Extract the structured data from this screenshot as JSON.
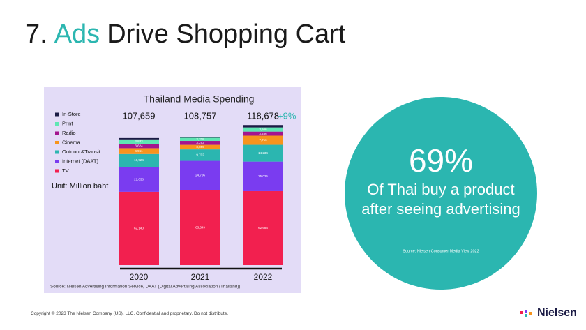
{
  "slide": {
    "title_number": "7.",
    "title_highlight": "Ads",
    "title_rest": "Drive Shopping Cart",
    "stat": "69%",
    "stat_text": "Of Thai buy a product after seeing advertising",
    "stat_source": "Source: Nielsen Consumer Media View 2022",
    "copyright": "Copyright © 2023 The Nielsen Company (US), LLC. Confidential and proprietary. Do not distribute.",
    "brand": "Nielsen"
  },
  "chart_data": {
    "type": "stacked-bar",
    "title": "Thailand Media Spending",
    "categories": [
      "2020",
      "2021",
      "2022"
    ],
    "series": [
      {
        "name": "TV",
        "color": "#f2204f",
        "values": [
          62140,
          63649,
          62684
        ],
        "value_labels": [
          "62,140",
          "63,649",
          "62,684"
        ]
      },
      {
        "name": "Internet (DAAT)",
        "color": "#7a3cf0",
        "values": [
          21038,
          24706,
          25025
        ],
        "value_labels": [
          "21,038",
          "24,706",
          "25,025"
        ]
      },
      {
        "name": "Outdoor&Transit",
        "color": "#2bb6b0",
        "values": [
          10924,
          9702,
          14234
        ],
        "value_labels": [
          "10,924",
          "9,702",
          "14,234"
        ]
      },
      {
        "name": "Cinema",
        "color": "#f7941d",
        "values": [
          4961,
          3859,
          7716
        ],
        "value_labels": [
          "4,961",
          "3,859",
          "7,716"
        ]
      },
      {
        "name": "Radio",
        "color": "#a3158f",
        "values": [
          3624,
          3293,
          3456
        ],
        "value_labels": [
          "3,624",
          "3,293",
          "3,456"
        ]
      },
      {
        "name": "Print",
        "color": "#5fe6b3",
        "values": [
          3833,
          2708,
          3566
        ],
        "value_labels": [
          "3,833",
          "2,708",
          "3,566"
        ]
      },
      {
        "name": "In-Store",
        "color": "#1b1b45",
        "values": [
          1139,
          840,
          1997
        ]
      }
    ],
    "totals": [
      {
        "value": 107659,
        "label": "107,659"
      },
      {
        "value": 108757,
        "label": "108,757"
      },
      {
        "value": 118678,
        "label": "118,678"
      }
    ],
    "growth": "+9%",
    "unit": "Unit: Million baht",
    "source": "Source: Nielsen Advertising Information Service, DAAT (Digital Advertising Association (Thailand))",
    "ylim": [
      0,
      120000
    ]
  }
}
